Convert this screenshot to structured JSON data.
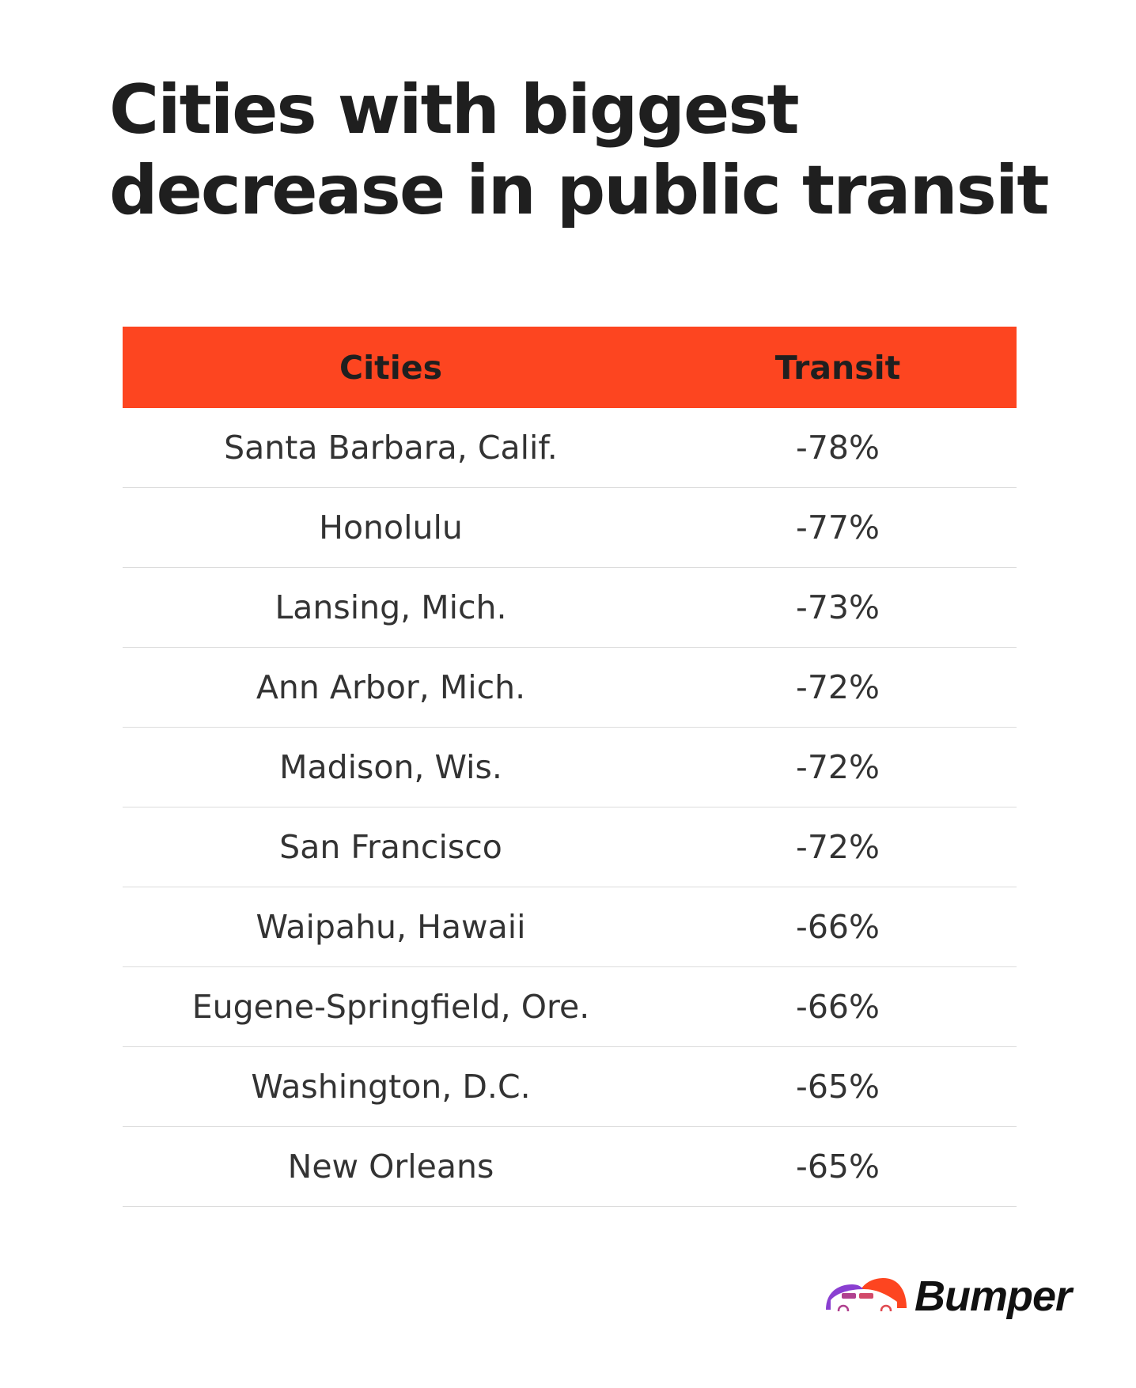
{
  "title_line1": "Cities with biggest",
  "title_line2": "decrease in public transit",
  "table": {
    "headers": [
      "Cities",
      "Transit"
    ],
    "rows": [
      [
        "Santa Barbara, Calif.",
        "-78%"
      ],
      [
        "Honolulu",
        "-77%"
      ],
      [
        "Lansing, Mich.",
        "-73%"
      ],
      [
        "Ann Arbor, Mich.",
        "-72%"
      ],
      [
        "Madison, Wis.",
        "-72%"
      ],
      [
        "San Francisco",
        "-72%"
      ],
      [
        "Waipahu, Hawaii",
        "-66%"
      ],
      [
        "Eugene-Springfield, Ore.",
        "-66%"
      ],
      [
        "Washington, D.C.",
        "-65%"
      ],
      [
        "New Orleans",
        "-65%"
      ]
    ]
  },
  "brand": {
    "name": "Bumper",
    "accent": "#fd4520",
    "secondary": "#8a3fd1"
  }
}
